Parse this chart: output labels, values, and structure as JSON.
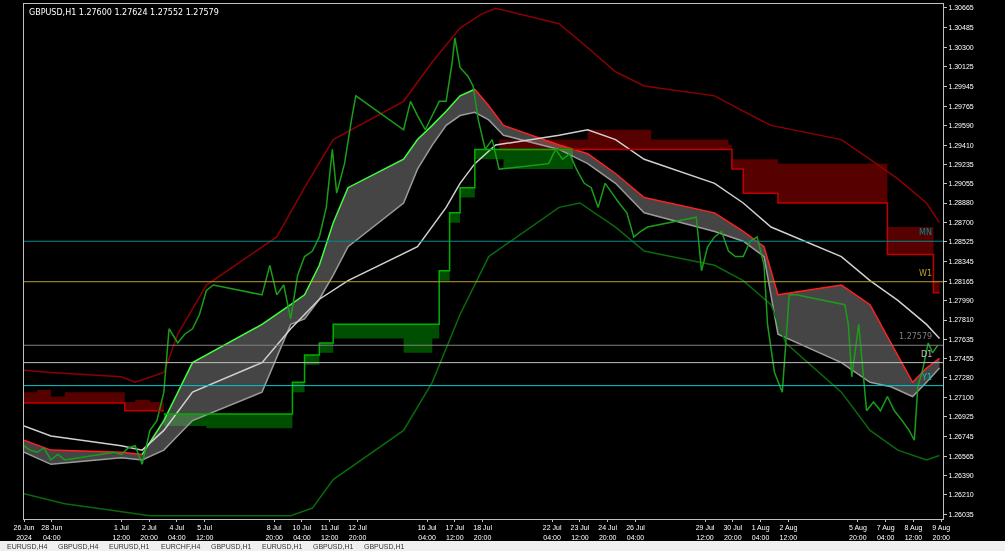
{
  "chart_data": {
    "type": "line",
    "title": "GBPUSD,H1 1.27600 1.27624 1.27552 1.27579",
    "annotations": [
      "EURUSD,H4",
      "GBPUSD,H4",
      "EURUSD,H1",
      "EURCHF,H4",
      "GBPUSD,H1",
      "EURUSD,H1",
      "GBPUSD,H1",
      "GBPUSD,H1"
    ],
    "xlim": [
      "2024-06-26T20:00",
      "2024-08-09T22:00"
    ],
    "ylim": [
      1.2599,
      1.307
    ],
    "xticks": [
      {
        "value": "2024-06-26T20:00",
        "label": "26 Jun 2024"
      },
      {
        "value": "2024-06-28T04:00",
        "label": "28 Jun 04:00"
      },
      {
        "value": "2024-07-01T12:00",
        "label": "1 Jul 12:00"
      },
      {
        "value": "2024-07-02T20:00",
        "label": "2 Jul 20:00"
      },
      {
        "value": "2024-07-04T04:00",
        "label": "4 Jul 04:00"
      },
      {
        "value": "2024-07-05T12:00",
        "label": "5 Jul 12:00"
      },
      {
        "value": "2024-07-08T20:00",
        "label": "8 Jul 20:00"
      },
      {
        "value": "2024-07-10T04:00",
        "label": "10 Jul 04:00"
      },
      {
        "value": "2024-07-11T12:00",
        "label": "11 Jul 12:00"
      },
      {
        "value": "2024-07-12T20:00",
        "label": "12 Jul 20:00"
      },
      {
        "value": "2024-07-16T04:00",
        "label": "16 Jul 04:00"
      },
      {
        "value": "2024-07-17T12:00",
        "label": "17 Jul 12:00"
      },
      {
        "value": "2024-07-18T20:00",
        "label": "18 Jul 20:00"
      },
      {
        "value": "2024-07-22T04:00",
        "label": "22 Jul 04:00"
      },
      {
        "value": "2024-07-23T12:00",
        "label": "23 Jul 12:00"
      },
      {
        "value": "2024-07-24T20:00",
        "label": "24 Jul 20:00"
      },
      {
        "value": "2024-07-26T04:00",
        "label": "26 Jul 04:00"
      },
      {
        "value": "2024-07-29T12:00",
        "label": "29 Jul 12:00"
      },
      {
        "value": "2024-07-30T20:00",
        "label": "30 Jul 20:00"
      },
      {
        "value": "2024-08-01T04:00",
        "label": "1 Aug 04:00"
      },
      {
        "value": "2024-08-02T12:00",
        "label": "2 Aug 12:00"
      },
      {
        "value": "2024-08-05T20:00",
        "label": "5 Aug 20:00"
      },
      {
        "value": "2024-08-07T04:00",
        "label": "7 Aug 04:00"
      },
      {
        "value": "2024-08-08T12:00",
        "label": "8 Aug 12:00"
      },
      {
        "value": "2024-08-09T20:00",
        "label": "9 Aug 20:00"
      }
    ],
    "yticks": [
      1.30665,
      1.30485,
      {
        "value": 1.303,
        "label": "1.30300"
      },
      1.30125,
      1.29945,
      1.29765,
      {
        "value": 1.2959,
        "label": "1.29590"
      },
      {
        "value": 1.2941,
        "label": "1.29410"
      },
      1.29235,
      1.29055,
      {
        "value": 1.2888,
        "label": "1.28880"
      },
      {
        "value": 1.287,
        "label": "1.28700"
      },
      1.28525,
      1.28345,
      1.28165,
      {
        "value": 1.2799,
        "label": "1.27990"
      },
      {
        "value": 1.2781,
        "label": "1.27810"
      },
      1.27635,
      1.27455,
      {
        "value": 1.2728,
        "label": "1.27280"
      },
      {
        "value": 1.271,
        "label": "1.27100"
      },
      1.26925,
      1.26745,
      1.26565,
      {
        "value": 1.2639,
        "label": "1.26390"
      },
      {
        "value": 1.2621,
        "label": "1.26210"
      },
      1.26035
    ],
    "grid": false,
    "marker": "none",
    "line_style": "solid",
    "ref_lines": [
      {
        "axis": "y",
        "value": 1.2853,
        "label": "MN",
        "color": "#008b8b"
      },
      {
        "axis": "y",
        "value": 1.2816,
        "label": "W1",
        "color": "#b8a030"
      },
      {
        "axis": "y",
        "value": 1.2742,
        "label": "D1",
        "color": "#c0c0c0"
      },
      {
        "axis": "y",
        "value": 1.2721,
        "label": "Y1",
        "color": "#00c8c8"
      },
      {
        "axis": "y",
        "value": 1.27579,
        "label": "1.27579",
        "color": "#808080"
      }
    ],
    "series": [
      {
        "type": "step",
        "color": "#c00000",
        "x": [
          "2024-06-26T20:00",
          "2024-06-27T11:00",
          "2024-06-28T03:00",
          "2024-06-28T19:00",
          "2024-07-01T16:00",
          "2024-07-02T04:00",
          "2024-07-02T21:00",
          "2024-07-03T13:00"
        ],
        "values": [
          1.2705,
          1.2705,
          1.2705,
          1.2705,
          1.2698,
          1.2698,
          1.2698,
          1.2698
        ],
        "lower": [
          1.2705,
          1.2705,
          1.2705,
          1.2705,
          1.2698,
          1.2698,
          1.2698,
          1.2698
        ],
        "upper": [
          1.2715,
          1.2717,
          1.2711,
          1.2715,
          1.2706,
          1.2708,
          1.2706,
          1.2704
        ]
      },
      {
        "type": "step",
        "color": "#c00000",
        "x": [
          "2024-07-19T15:00",
          "2024-07-23T21:00",
          "2024-07-25T05:00",
          "2024-07-26T22:00",
          "2024-07-30T15:00",
          "2024-07-30T19:00",
          "2024-07-31T08:00",
          "2024-08-02T00:00",
          "2024-08-07T06:00",
          "2024-08-09T11:00",
          "2024-08-09T18:00"
        ],
        "values": [
          1.2937,
          1.2937,
          1.2937,
          1.2937,
          1.2937,
          1.2919,
          1.2897,
          1.2888,
          1.2841,
          1.2806,
          1.2806
        ],
        "lower": [
          1.2937,
          1.2937,
          1.2937,
          1.2937,
          1.2937,
          1.2919,
          1.2897,
          1.2888,
          1.2841,
          1.2806,
          1.2806
        ],
        "upper": [
          1.2946,
          1.2955,
          1.2955,
          1.2946,
          1.2941,
          1.2928,
          1.2928,
          1.2924,
          1.2866,
          1.2817,
          1.2817
        ]
      },
      {
        "type": "step",
        "color": "#00b000",
        "x": [
          "2024-07-03T13:00",
          "2024-07-05T14:00",
          "2024-07-09T17:00",
          "2024-07-10T07:00",
          "2024-07-11T00:00",
          "2024-07-11T16:00",
          "2024-07-15T01:00",
          "2024-07-16T10:00",
          "2024-07-16T18:00",
          "2024-07-17T06:00",
          "2024-07-17T18:00",
          "2024-07-18T11:00",
          "2024-07-19T20:00",
          "2024-07-23T04:00"
        ],
        "values": [
          1.2695,
          1.2695,
          1.2724,
          1.2749,
          1.276,
          1.2777,
          1.2777,
          1.2777,
          1.2826,
          1.2879,
          1.2902,
          1.2937,
          1.2937,
          1.2937
        ],
        "lower": [
          1.2684,
          1.2682,
          1.2715,
          1.274,
          1.2751,
          1.2764,
          1.2751,
          1.2764,
          1.2817,
          1.287,
          1.2893,
          1.2928,
          1.2919,
          1.2924
        ],
        "upper": [
          1.2695,
          1.2695,
          1.2724,
          1.2749,
          1.276,
          1.2777,
          1.2777,
          1.2777,
          1.2826,
          1.2879,
          1.2902,
          1.2937,
          1.2937,
          1.2937
        ]
      },
      {
        "color": "#9a9a9a",
        "x": [
          "2024-06-26T20:00",
          "2024-06-28T03:00",
          "2024-07-01T12:00",
          "2024-07-02T12:00",
          "2024-07-03T13:00",
          "2024-07-04T22:00",
          "2024-07-08T06:00",
          "2024-07-09T15:00",
          "2024-07-10T07:00",
          "2024-07-11T00:00",
          "2024-07-11T16:00",
          "2024-07-12T09:00",
          "2024-07-15T01:00",
          "2024-07-15T17:00",
          "2024-07-16T10:00",
          "2024-07-17T02:00",
          "2024-07-17T18:00",
          "2024-07-18T11:00",
          "2024-07-19T03:00",
          "2024-07-19T20:00",
          "2024-07-22T12:00",
          "2024-07-23T21:00",
          "2024-07-25T05:00",
          "2024-07-26T14:00",
          "2024-07-29T23:00",
          "2024-07-31T08:00",
          "2024-08-01T08:00",
          "2024-08-02T00:00",
          "2024-08-05T01:00",
          "2024-08-06T10:00",
          "2024-08-07T10:00",
          "2024-08-08T11:00",
          "2024-08-09T03:00",
          "2024-08-09T18:00"
        ],
        "values": [
          1.266,
          1.2649,
          1.2655,
          1.2653,
          1.2662,
          1.2689,
          1.2715,
          1.2777,
          1.2782,
          1.28,
          1.2822,
          1.2848,
          1.2888,
          1.2919,
          1.2941,
          1.2959,
          1.2968,
          1.2971,
          1.2964,
          1.295,
          1.2937,
          1.2924,
          1.2906,
          1.2879,
          1.2862,
          1.2853,
          1.2839,
          1.2768,
          1.2742,
          1.2724,
          1.272,
          1.2711,
          1.2724,
          1.2737
        ],
        "lower": [
          1.266,
          1.2649,
          1.2655,
          1.2653,
          1.2662,
          1.2689,
          1.2715,
          1.2777,
          1.2782,
          1.28,
          1.2822,
          1.2848,
          1.2888,
          1.2919,
          1.2941,
          1.2959,
          1.2968,
          1.2971,
          1.2964,
          1.295,
          1.2937,
          1.2924,
          1.2906,
          1.2879,
          1.2862,
          1.2853,
          1.2839,
          1.2768,
          1.2742,
          1.2724,
          1.272,
          1.2711,
          1.2724,
          1.2737
        ],
        "upper": [
          1.2671,
          1.2662,
          1.266,
          1.2658,
          1.2689,
          1.2742,
          1.2777,
          1.2795,
          1.2804,
          1.2831,
          1.287,
          1.2902,
          1.2928,
          1.2946,
          1.2959,
          1.2972,
          1.2986,
          1.2992,
          1.2977,
          1.2959,
          1.2941,
          1.2933,
          1.2915,
          1.2893,
          1.2879,
          1.2862,
          1.2848,
          1.2804,
          1.2813,
          1.2795,
          1.276,
          1.2724,
          1.2737,
          1.2746
        ]
      },
      {
        "color": "#ff2020",
        "x": [
          "2024-06-26T20:00",
          "2024-06-28T03:00",
          "2024-07-01T12:00",
          "2024-07-02T12:00"
        ],
        "values": [
          1.2671,
          1.2662,
          1.266,
          1.2658
        ]
      },
      {
        "color": "#40ff40",
        "x": [
          "2024-07-02T12:00",
          "2024-07-03T13:00",
          "2024-07-04T22:00",
          "2024-07-08T06:00",
          "2024-07-09T15:00",
          "2024-07-10T07:00",
          "2024-07-11T00:00",
          "2024-07-11T16:00",
          "2024-07-12T09:00",
          "2024-07-15T01:00",
          "2024-07-15T17:00",
          "2024-07-16T10:00",
          "2024-07-17T02:00",
          "2024-07-17T18:00",
          "2024-07-18T11:00"
        ],
        "values": [
          1.2658,
          1.2689,
          1.2742,
          1.2777,
          1.2795,
          1.2804,
          1.2831,
          1.287,
          1.2902,
          1.2928,
          1.2946,
          1.2959,
          1.2972,
          1.2986,
          1.2992
        ]
      },
      {
        "color": "#ff2020",
        "x": [
          "2024-07-18T11:00",
          "2024-07-19T03:00",
          "2024-07-19T20:00",
          "2024-07-22T12:00",
          "2024-07-23T21:00",
          "2024-07-25T05:00",
          "2024-07-26T14:00",
          "2024-07-29T23:00",
          "2024-07-31T08:00",
          "2024-08-01T08:00",
          "2024-08-02T00:00",
          "2024-08-05T01:00",
          "2024-08-06T10:00",
          "2024-08-07T10:00",
          "2024-08-08T11:00",
          "2024-08-09T03:00",
          "2024-08-09T18:00"
        ],
        "values": [
          1.2992,
          1.2977,
          1.2959,
          1.2941,
          1.2933,
          1.2915,
          1.2893,
          1.2879,
          1.2862,
          1.2848,
          1.2804,
          1.2813,
          1.2795,
          1.276,
          1.2724,
          1.2737,
          1.2746
        ]
      },
      {
        "color": "#8b0000",
        "x": [
          "2024-06-26T20:00",
          "2024-06-28T03:00",
          "2024-07-01T12:00",
          "2024-07-02T04:00",
          "2024-07-03T13:00",
          "2024-07-04T05:00",
          "2024-07-05T14:00",
          "2024-07-08T23:00",
          "2024-07-10T07:00",
          "2024-07-11T16:00",
          "2024-07-15T01:00",
          "2024-07-16T10:00",
          "2024-07-17T18:00",
          "2024-07-18T19:00",
          "2024-07-19T11:00",
          "2024-07-22T12:00",
          "2024-07-23T21:00",
          "2024-07-25T05:00",
          "2024-07-26T14:00",
          "2024-07-29T23:00",
          "2024-07-31T08:00",
          "2024-08-01T16:00",
          "2024-08-05T01:00",
          "2024-08-06T10:00",
          "2024-08-07T18:00",
          "2024-08-09T03:00",
          "2024-08-09T18:00"
        ],
        "values": [
          1.2735,
          1.2733,
          1.2729,
          1.2724,
          1.2733,
          1.2768,
          1.2813,
          1.2857,
          1.2902,
          1.2946,
          1.2981,
          1.3017,
          1.3048,
          1.3061,
          1.3066,
          1.3052,
          1.303,
          1.3008,
          1.2995,
          1.2986,
          1.2972,
          1.2959,
          1.2946,
          1.2928,
          1.291,
          1.2888,
          1.287
        ]
      },
      {
        "color": "#0a6a0a",
        "x": [
          "2024-06-26T20:00",
          "2024-06-28T19:00",
          "2024-07-02T21:00",
          "2024-07-09T15:00",
          "2024-07-10T16:00",
          "2024-07-11T16:00",
          "2024-07-15T01:00",
          "2024-07-16T10:00",
          "2024-07-17T18:00",
          "2024-07-19T03:00",
          "2024-07-22T12:00",
          "2024-07-23T12:00",
          "2024-07-25T05:00",
          "2024-07-26T14:00",
          "2024-07-29T23:00",
          "2024-07-31T08:00",
          "2024-08-01T16:00",
          "2024-08-02T09:00",
          "2024-08-05T01:00",
          "2024-08-06T10:00",
          "2024-08-07T18:00",
          "2024-08-09T03:00",
          "2024-08-09T18:00"
        ],
        "values": [
          1.2622,
          1.2613,
          1.2602,
          1.2602,
          1.2609,
          1.2635,
          1.268,
          1.2724,
          1.2786,
          1.2839,
          1.2884,
          1.2888,
          1.2866,
          1.2844,
          1.2831,
          1.2817,
          1.2795,
          1.276,
          1.2715,
          1.268,
          1.2662,
          1.2653,
          1.2657
        ]
      },
      {
        "color": "#d0d0d0",
        "x": [
          "2024-06-26T20:00",
          "2024-06-28T03:00",
          "2024-07-01T12:00",
          "2024-07-02T12:00",
          "2024-07-03T13:00",
          "2024-07-04T22:00",
          "2024-07-08T06:00",
          "2024-07-09T15:00",
          "2024-07-11T00:00",
          "2024-07-12T09:00",
          "2024-07-15T17:00",
          "2024-07-17T02:00",
          "2024-07-17T18:00",
          "2024-07-18T11:00",
          "2024-07-19T11:00",
          "2024-07-22T12:00",
          "2024-07-23T21:00",
          "2024-07-25T05:00",
          "2024-07-26T14:00",
          "2024-07-29T23:00",
          "2024-07-31T08:00",
          "2024-08-01T16:00",
          "2024-08-05T01:00",
          "2024-08-06T10:00",
          "2024-08-07T18:00",
          "2024-08-09T03:00",
          "2024-08-09T18:00"
        ],
        "values": [
          1.2684,
          1.2675,
          1.2666,
          1.2662,
          1.268,
          1.2715,
          1.2742,
          1.2773,
          1.28,
          1.2817,
          1.2848,
          1.2884,
          1.2906,
          1.2924,
          1.2941,
          1.295,
          1.2955,
          1.2946,
          1.2928,
          1.2906,
          1.2888,
          1.2866,
          1.2839,
          1.2817,
          1.2799,
          1.2777,
          1.2764
        ]
      },
      {
        "color": "#1a9e1a",
        "x": [
          "2024-06-26T20:00",
          "2024-06-27T03:00",
          "2024-06-27T11:00",
          "2024-06-27T19:00",
          "2024-06-28T03:00",
          "2024-06-28T11:00",
          "2024-06-28T19:00",
          "2024-07-01T04:00",
          "2024-07-01T12:00",
          "2024-07-01T20:00",
          "2024-07-02T04:00",
          "2024-07-02T12:00",
          "2024-07-02T21:00",
          "2024-07-03T05:00",
          "2024-07-03T13:00",
          "2024-07-03T19:00",
          "2024-07-04T05:00",
          "2024-07-04T13:00",
          "2024-07-04T22:00",
          "2024-07-05T06:00",
          "2024-07-05T14:00",
          "2024-07-05T22:00",
          "2024-07-08T06:00",
          "2024-07-08T15:00",
          "2024-07-08T23:00",
          "2024-07-09T07:00",
          "2024-07-09T15:00",
          "2024-07-09T23:00",
          "2024-07-10T07:00",
          "2024-07-10T16:00",
          "2024-07-11T00:00",
          "2024-07-11T08:00",
          "2024-07-11T15:00",
          "2024-07-11T20:00",
          "2024-07-12T05:00",
          "2024-07-12T13:00",
          "2024-07-12T18:00",
          "2024-07-15T01:00",
          "2024-07-15T09:00",
          "2024-07-15T17:00",
          "2024-07-16T02:00",
          "2024-07-16T10:00",
          "2024-07-16T18:00",
          "2024-07-17T02:00",
          "2024-07-17T09:00",
          "2024-07-17T12:00",
          "2024-07-17T18:00",
          "2024-07-18T03:00",
          "2024-07-18T09:00",
          "2024-07-18T15:00",
          "2024-07-18T23:00",
          "2024-07-19T07:00",
          "2024-07-19T15:00",
          "2024-07-22T00:00",
          "2024-07-22T08:00",
          "2024-07-22T16:00",
          "2024-07-23T00:00",
          "2024-07-23T08:00",
          "2024-07-23T17:00",
          "2024-07-24T01:00",
          "2024-07-24T09:00",
          "2024-07-24T17:00",
          "2024-07-25T01:00",
          "2024-07-25T09:00",
          "2024-07-25T18:00",
          "2024-07-26T02:00",
          "2024-07-26T10:00",
          "2024-07-26T18:00",
          "2024-07-29T02:00",
          "2024-07-29T08:00",
          "2024-07-29T15:00",
          "2024-07-29T23:00",
          "2024-07-30T07:00",
          "2024-07-30T15:00",
          "2024-07-30T23:00",
          "2024-07-31T08:00",
          "2024-07-31T16:00",
          "2024-08-01T00:00",
          "2024-08-01T08:00",
          "2024-08-01T12:00",
          "2024-08-01T20:00",
          "2024-08-02T05:00",
          "2024-08-02T13:00",
          "2024-08-02T21:00",
          "2024-08-05T05:00",
          "2024-08-05T09:00",
          "2024-08-05T13:00",
          "2024-08-05T21:00",
          "2024-08-06T06:00",
          "2024-08-06T14:00",
          "2024-08-06T22:00",
          "2024-08-07T06:00",
          "2024-08-07T14:00",
          "2024-08-07T23:00",
          "2024-08-08T07:00",
          "2024-08-08T13:00",
          "2024-08-08T17:00",
          "2024-08-08T23:00",
          "2024-08-09T05:00",
          "2024-08-09T10:00",
          "2024-08-09T16:00"
        ],
        "values": [
          1.2666,
          1.2662,
          1.266,
          1.2664,
          1.2653,
          1.2658,
          1.2653,
          1.266,
          1.2658,
          1.2664,
          1.2666,
          1.2649,
          1.268,
          1.2689,
          1.2715,
          1.2773,
          1.276,
          1.2768,
          1.2773,
          1.2786,
          1.2808,
          1.2813,
          1.2804,
          1.2831,
          1.2804,
          1.2813,
          1.2782,
          1.2822,
          1.2839,
          1.2844,
          1.2857,
          1.2884,
          1.2937,
          1.2897,
          1.2924,
          1.2964,
          1.2986,
          1.2955,
          1.2981,
          1.2968,
          1.2955,
          1.2968,
          1.2981,
          1.2981,
          1.3017,
          1.3039,
          1.3012,
          1.3004,
          1.2995,
          1.2964,
          1.2937,
          1.2946,
          1.2919,
          1.2924,
          1.2937,
          1.2928,
          1.2933,
          1.2919,
          1.2906,
          1.2902,
          1.2884,
          1.2906,
          1.2897,
          1.2888,
          1.2879,
          1.2857,
          1.2862,
          1.2866,
          1.2875,
          1.2826,
          1.2848,
          1.2857,
          1.2862,
          1.2844,
          1.2839,
          1.2839,
          1.2853,
          1.2857,
          1.2831,
          1.2777,
          1.2733,
          1.2715,
          1.2804,
          1.2804,
          1.2795,
          1.2777,
          1.2729,
          1.2777,
          1.2698,
          1.2706,
          1.2698,
          1.2711,
          1.2698,
          1.2689,
          1.268,
          1.2671,
          1.272,
          1.2737,
          1.276,
          1.2751,
          1.2758
        ]
      }
    ]
  }
}
